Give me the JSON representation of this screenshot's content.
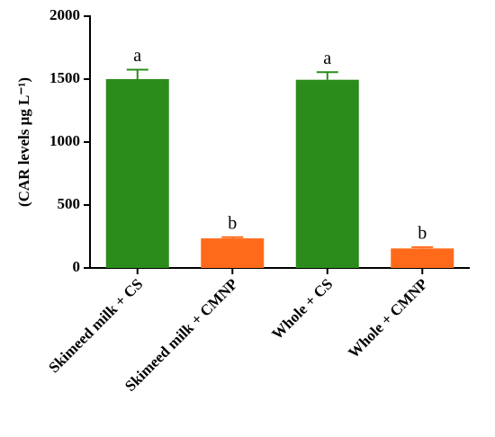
{
  "chart_data": {
    "type": "bar",
    "ylabel": "(CAR levels μg L⁻¹)",
    "categories": [
      "Skimeed milk + CS",
      "Skimeed milk + CMNP",
      "Whole + CS",
      "Whole + CMNP"
    ],
    "values": [
      1500,
      235,
      1495,
      155
    ],
    "errors": [
      75,
      10,
      60,
      10
    ],
    "annotations": [
      "a",
      "b",
      "a",
      "b"
    ],
    "colors": [
      "#2b8c1b",
      "#ff6a1a",
      "#2b8c1b",
      "#ff6a1a"
    ],
    "ylim": [
      0,
      2000
    ],
    "yticks": [
      0,
      500,
      1000,
      1500,
      2000
    ]
  }
}
